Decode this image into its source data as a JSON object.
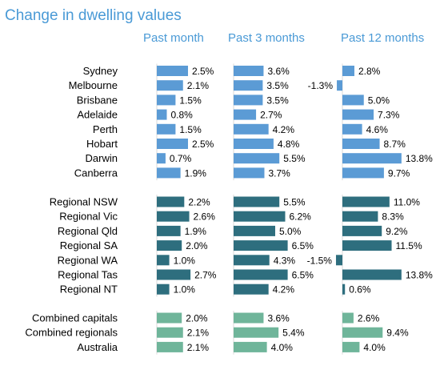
{
  "chart_data": {
    "type": "bar",
    "title": "Change in dwelling values",
    "periods": [
      "Past month",
      "Past 3 months",
      "Past 12 months"
    ],
    "colors": {
      "capitals": "#5b9bd5",
      "regional": "#2e6e7e",
      "combined": "#6fb59a"
    },
    "groups": [
      {
        "key": "capitals",
        "rows": [
          {
            "name": "Sydney",
            "values": [
              2.5,
              3.6,
              2.8
            ],
            "labels": [
              "2.5%",
              "3.6%",
              "2.8%"
            ]
          },
          {
            "name": "Melbourne",
            "values": [
              2.1,
              3.5,
              -1.3
            ],
            "labels": [
              "2.1%",
              "3.5%",
              "-1.3%"
            ]
          },
          {
            "name": "Brisbane",
            "values": [
              1.5,
              3.5,
              5.0
            ],
            "labels": [
              "1.5%",
              "3.5%",
              "5.0%"
            ]
          },
          {
            "name": "Adelaide",
            "values": [
              0.8,
              2.7,
              7.3
            ],
            "labels": [
              "0.8%",
              "2.7%",
              "7.3%"
            ]
          },
          {
            "name": "Perth",
            "values": [
              1.5,
              4.2,
              4.6
            ],
            "labels": [
              "1.5%",
              "4.2%",
              "4.6%"
            ]
          },
          {
            "name": "Hobart",
            "values": [
              2.5,
              4.8,
              8.7
            ],
            "labels": [
              "2.5%",
              "4.8%",
              "8.7%"
            ]
          },
          {
            "name": "Darwin",
            "values": [
              0.7,
              5.5,
              13.8
            ],
            "labels": [
              "0.7%",
              "5.5%",
              "13.8%"
            ]
          },
          {
            "name": "Canberra",
            "values": [
              1.9,
              3.7,
              9.7
            ],
            "labels": [
              "1.9%",
              "3.7%",
              "9.7%"
            ]
          }
        ]
      },
      {
        "key": "regional",
        "rows": [
          {
            "name": "Regional NSW",
            "values": [
              2.2,
              5.5,
              11.0
            ],
            "labels": [
              "2.2%",
              "5.5%",
              "11.0%"
            ]
          },
          {
            "name": "Regional Vic",
            "values": [
              2.6,
              6.2,
              8.3
            ],
            "labels": [
              "2.6%",
              "6.2%",
              "8.3%"
            ]
          },
          {
            "name": "Regional Qld",
            "values": [
              1.9,
              5.0,
              9.2
            ],
            "labels": [
              "1.9%",
              "5.0%",
              "9.2%"
            ]
          },
          {
            "name": "Regional SA",
            "values": [
              2.0,
              6.5,
              11.5
            ],
            "labels": [
              "2.0%",
              "6.5%",
              "11.5%"
            ]
          },
          {
            "name": "Regional WA",
            "values": [
              1.0,
              4.3,
              -1.5
            ],
            "labels": [
              "1.0%",
              "4.3%",
              "-1.5%"
            ]
          },
          {
            "name": "Regional Tas",
            "values": [
              2.7,
              6.5,
              13.8
            ],
            "labels": [
              "2.7%",
              "6.5%",
              "13.8%"
            ]
          },
          {
            "name": "Regional NT",
            "values": [
              1.0,
              4.2,
              0.6
            ],
            "labels": [
              "1.0%",
              "4.2%",
              "0.6%"
            ]
          }
        ]
      },
      {
        "key": "combined",
        "rows": [
          {
            "name": "Combined capitals",
            "values": [
              2.0,
              3.6,
              2.6
            ],
            "labels": [
              "2.0%",
              "3.6%",
              "2.6%"
            ]
          },
          {
            "name": "Combined regionals",
            "values": [
              2.1,
              5.4,
              9.4
            ],
            "labels": [
              "2.1%",
              "5.4%",
              "9.4%"
            ]
          },
          {
            "name": "Australia",
            "values": [
              2.1,
              4.0,
              4.0
            ],
            "labels": [
              "2.1%",
              "4.0%",
              "4.0%"
            ]
          }
        ]
      }
    ]
  }
}
